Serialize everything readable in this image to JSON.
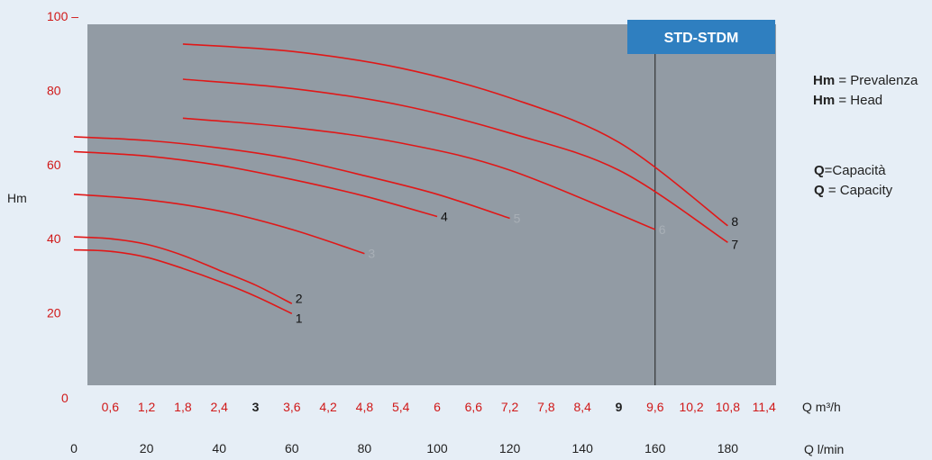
{
  "chart_data": {
    "type": "line",
    "ylabel": "Hm",
    "ylim": [
      0,
      100
    ],
    "y_ticks": [
      {
        "value": 100,
        "label": "100 –"
      },
      {
        "value": 80,
        "label": "80"
      },
      {
        "value": 60,
        "label": "60"
      },
      {
        "value": 40,
        "label": "40"
      },
      {
        "value": 20,
        "label": "20"
      },
      {
        "value": 0,
        "label": "0"
      }
    ],
    "x_axis_m3h": {
      "unit_label": "Q m³/h",
      "ticks": [
        "0,6",
        "1,2",
        "1,8",
        "2,4",
        "3",
        "3,6",
        "4,2",
        "4,8",
        "5,4",
        "6",
        "6,6",
        "7,2",
        "7,8",
        "8,4",
        "9",
        "9,6",
        "10,2",
        "10,8",
        "11,4"
      ],
      "highlight_ticks": [
        "3",
        "9"
      ]
    },
    "x_axis_lmin": {
      "unit_label": "Q l/min",
      "ticks": [
        "0",
        "20",
        "40",
        "60",
        "80",
        "100",
        "120",
        "140",
        "160",
        "180"
      ]
    },
    "xlim_lmin": [
      0,
      190
    ],
    "model_label": "STD-STDM",
    "marker_line_x": 160,
    "series": [
      {
        "name": "1",
        "x": [
          0,
          10,
          20,
          30,
          40,
          50,
          60
        ],
        "y": [
          37,
          36.6,
          35,
          32,
          28.5,
          24.5,
          19.8
        ]
      },
      {
        "name": "2",
        "x": [
          0,
          10,
          20,
          30,
          40,
          50,
          60
        ],
        "y": [
          40.5,
          40,
          38.5,
          35.5,
          31.5,
          27.5,
          22.5
        ]
      },
      {
        "name": "3",
        "x": [
          0,
          20,
          40,
          60,
          80
        ],
        "y": [
          52,
          50.5,
          47.5,
          42.5,
          36
        ]
      },
      {
        "name": "4",
        "x": [
          0,
          20,
          40,
          60,
          80,
          100
        ],
        "y": [
          63.5,
          62.3,
          59.8,
          56,
          51.5,
          46
        ]
      },
      {
        "name": "5",
        "x": [
          0,
          20,
          40,
          60,
          80,
          100,
          120
        ],
        "y": [
          67.5,
          66.5,
          64.5,
          61.5,
          57,
          52,
          45.5
        ]
      },
      {
        "name": "6",
        "x": [
          30,
          60,
          90,
          120,
          160
        ],
        "y": [
          72.5,
          70,
          65.8,
          58.5,
          42.5
        ]
      },
      {
        "name": "7",
        "x": [
          30,
          60,
          90,
          120,
          150,
          180
        ],
        "y": [
          83,
          80.5,
          76,
          68.5,
          58.5,
          39
        ]
      },
      {
        "name": "8",
        "x": [
          30,
          60,
          90,
          120,
          150,
          180
        ],
        "y": [
          92.5,
          90.5,
          86,
          78,
          66,
          43.5
        ]
      }
    ],
    "label_color_rules": {
      "gray_labels": [
        "3",
        "5",
        "6"
      ]
    },
    "colors": {
      "plot_bg": "#929ba4",
      "page_bg": "#e6eef6",
      "curve": "#e01818",
      "axis_red": "#d01818",
      "badge": "#2f7fc0"
    }
  },
  "legend": {
    "line1_bold": "Hm",
    "line1_text": " = Prevalenza",
    "line2_bold": "Hm",
    "line2_text": " = Head",
    "line3_bold": "Q",
    "line3_text": "=Capacità",
    "line4_bold": "Q",
    "line4_text": " = Capacity"
  }
}
